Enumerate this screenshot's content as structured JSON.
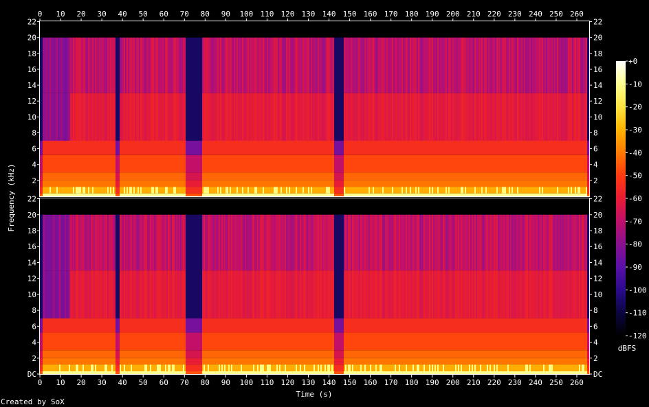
{
  "chart_data": {
    "type": "heatmap",
    "title": "",
    "xlabel": "Time (s)",
    "ylabel": "Frequency (kHz)",
    "x_range": [
      0,
      266
    ],
    "x_ticks": [
      "0",
      "10",
      "20",
      "30",
      "40",
      "50",
      "60",
      "70",
      "80",
      "90",
      "100",
      "110",
      "120",
      "130",
      "140",
      "150",
      "160",
      "170",
      "180",
      "190",
      "200",
      "210",
      "220",
      "230",
      "240",
      "250",
      "260"
    ],
    "y_range_khz": [
      0,
      22.05
    ],
    "y_ticks": [
      "DC",
      "2",
      "4",
      "6",
      "8",
      "10",
      "12",
      "14",
      "16",
      "18",
      "20",
      "22"
    ],
    "channels": [
      {
        "name": "",
        "band_limit_khz": 20
      },
      {
        "name": "",
        "band_limit_khz": 20
      }
    ],
    "colorbar": {
      "label": "dBFS",
      "range": [
        -120,
        0
      ],
      "ticks": [
        "+0",
        "-10",
        "-20",
        "-30",
        "-40",
        "-50",
        "-60",
        "-70",
        "-80",
        "-90",
        "-100",
        "-110",
        "-120"
      ]
    },
    "quiet_segments_s": [
      [
        0,
        1
      ],
      [
        36.5,
        38.5
      ],
      [
        70.5,
        78
      ],
      [
        142,
        147
      ],
      [
        264.5,
        266
      ]
    ],
    "colors": {
      "background": "#000000",
      "text": "#ffffff",
      "palette": [
        "#000000",
        "#0a0640",
        "#2a0a8c",
        "#5a10a8",
        "#8a1090",
        "#c0106a",
        "#e81c34",
        "#ff3a10",
        "#ff7a00",
        "#ffb400",
        "#ffe440",
        "#ffff90",
        "#ffffff"
      ]
    },
    "credit": "Created by SoX"
  }
}
